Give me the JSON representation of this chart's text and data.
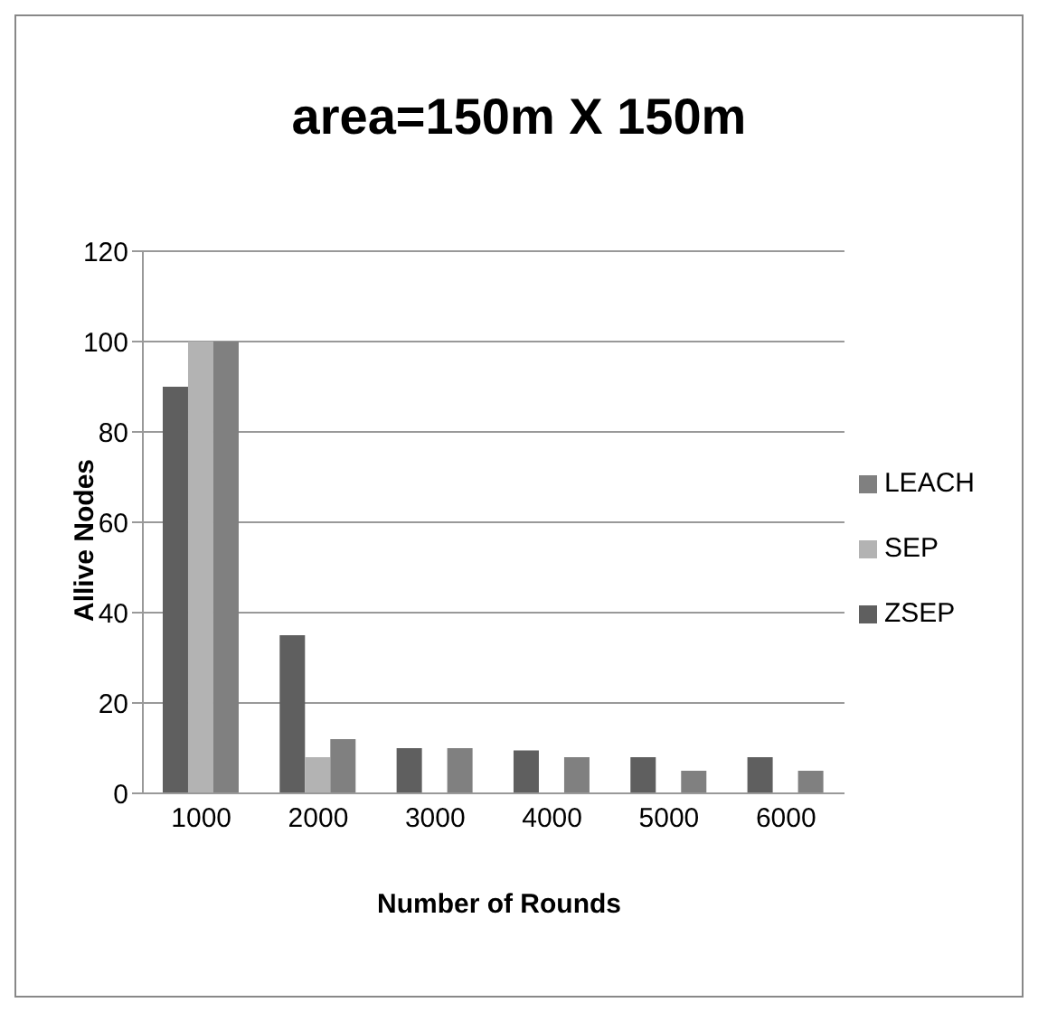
{
  "chart_data": {
    "type": "bar",
    "title": "area=150m X 150m",
    "xlabel": "Number of Rounds",
    "ylabel": "Allive Nodes",
    "categories": [
      "1000",
      "2000",
      "3000",
      "4000",
      "5000",
      "6000"
    ],
    "series": [
      {
        "name": "ZSEP",
        "color": "#5f5f5f",
        "values": [
          90,
          35,
          10,
          9.5,
          8,
          8
        ]
      },
      {
        "name": "SEP",
        "color": "#b3b3b3",
        "values": [
          100,
          8,
          0,
          0,
          0,
          0
        ]
      },
      {
        "name": "LEACH",
        "color": "#808080",
        "values": [
          100,
          12,
          10,
          8,
          5,
          5
        ]
      }
    ],
    "ylim": [
      0,
      120
    ],
    "yticks": [
      0,
      20,
      40,
      60,
      80,
      100,
      120
    ],
    "grid": "y",
    "legend": "right"
  }
}
